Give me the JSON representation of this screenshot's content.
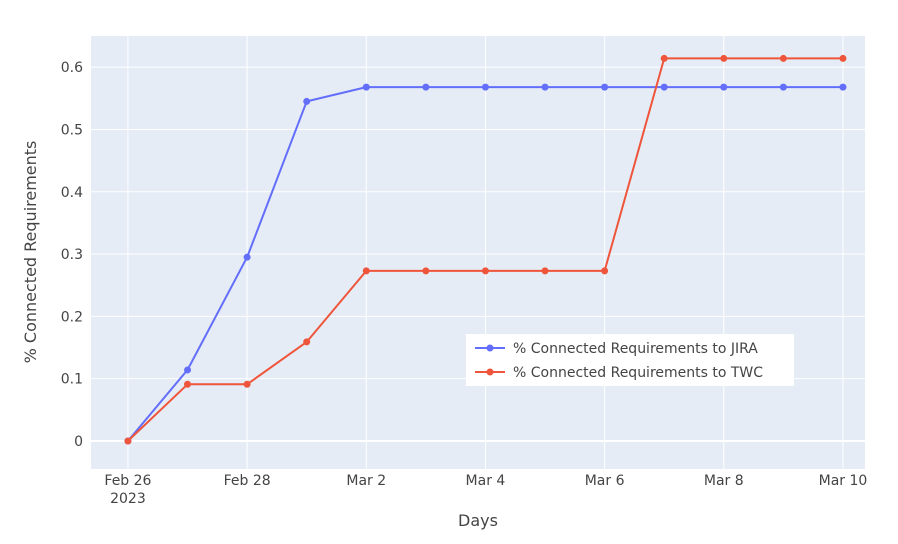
{
  "chart_data": {
    "type": "line",
    "title": "",
    "xlabel": "Days",
    "ylabel": "% Connected Requirements",
    "x": [
      "2023-02-26",
      "2023-02-27",
      "2023-02-28",
      "2023-03-01",
      "2023-03-02",
      "2023-03-03",
      "2023-03-04",
      "2023-03-05",
      "2023-03-06",
      "2023-03-07",
      "2023-03-08",
      "2023-03-09",
      "2023-03-10"
    ],
    "xlim": [
      "2023-02-25",
      "2023-03-10"
    ],
    "x_ticks": [
      {
        "date": "2023-02-26",
        "label": "Feb 26",
        "sublabel": "2023"
      },
      {
        "date": "2023-02-28",
        "label": "Feb 28",
        "sublabel": ""
      },
      {
        "date": "2023-03-02",
        "label": "Mar 2",
        "sublabel": ""
      },
      {
        "date": "2023-03-04",
        "label": "Mar 4",
        "sublabel": ""
      },
      {
        "date": "2023-03-06",
        "label": "Mar 6",
        "sublabel": ""
      },
      {
        "date": "2023-03-08",
        "label": "Mar 8",
        "sublabel": ""
      },
      {
        "date": "2023-03-10",
        "label": "Mar 10",
        "sublabel": ""
      }
    ],
    "ylim": [
      -0.045,
      0.65
    ],
    "y_ticks": [
      0,
      0.1,
      0.2,
      0.3,
      0.4,
      0.5,
      0.6
    ],
    "y_tick_labels": [
      "0",
      "0.1",
      "0.2",
      "0.3",
      "0.4",
      "0.5",
      "0.6"
    ],
    "grid": true,
    "legend_position": "center-right",
    "series": [
      {
        "name": "% Connected Requirements to JIRA",
        "color": "#636efa",
        "values": [
          0,
          0.114,
          0.295,
          0.545,
          0.568,
          0.568,
          0.568,
          0.568,
          0.568,
          0.568,
          0.568,
          0.568,
          0.568
        ]
      },
      {
        "name": "% Connected Requirements to TWC",
        "color": "#ef553b",
        "values": [
          0,
          0.091,
          0.091,
          0.159,
          0.273,
          0.273,
          0.273,
          0.273,
          0.273,
          0.614,
          0.614,
          0.614,
          0.614
        ]
      }
    ]
  },
  "colors": {
    "plot_background": "#e5ecf6",
    "grid": "#ffffff",
    "text": "#444444"
  }
}
